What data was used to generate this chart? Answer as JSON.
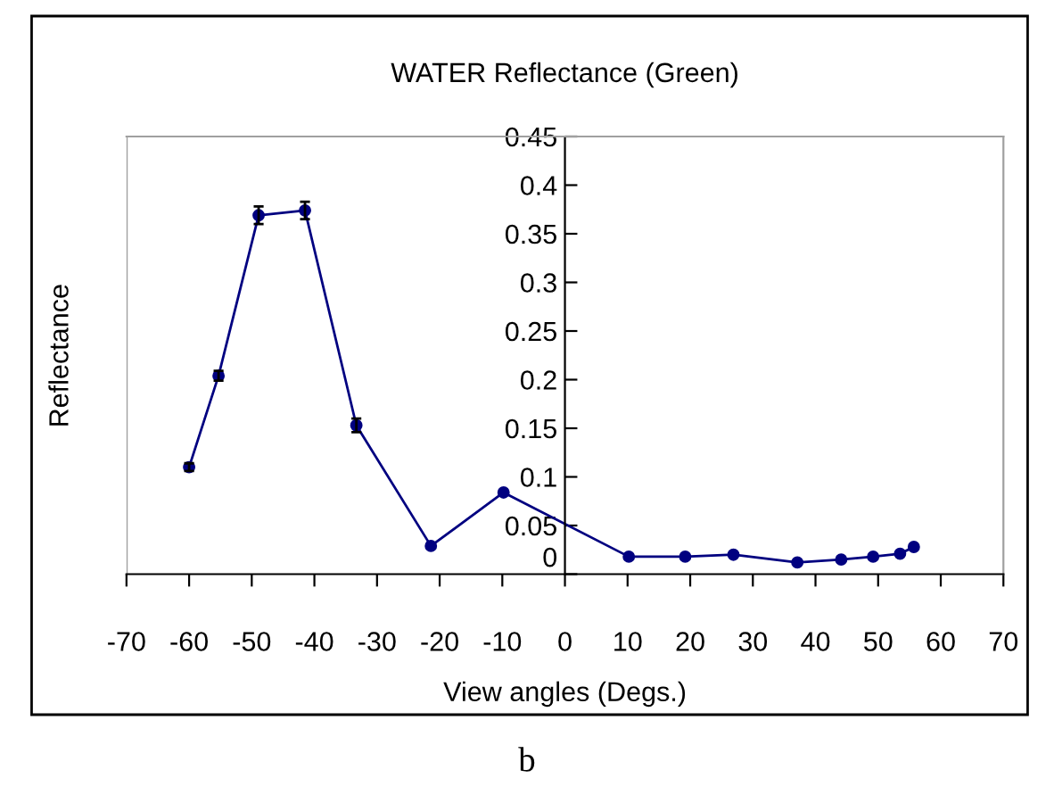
{
  "chart_data": {
    "type": "line",
    "title": "WATER Reflectance (Green)",
    "xlabel": "View angles (Degs.)",
    "ylabel": "Reflectance",
    "annotations": [
      "b"
    ],
    "x": [
      -60,
      -55.3,
      -48.9,
      -41.5,
      -33.3,
      -21.4,
      -9.8,
      10.2,
      19.2,
      26.9,
      37.1,
      44.1,
      49.2,
      53.5,
      55.7
    ],
    "series": [
      {
        "color": "#000080",
        "values": [
          0.11,
          0.204,
          0.369,
          0.374,
          0.153,
          0.029,
          0.084,
          0.018,
          0.018,
          0.02,
          0.012,
          0.015,
          0.018,
          0.021,
          0.028
        ],
        "errors": [
          0.004,
          0.005,
          0.009,
          0.009,
          0.007,
          null,
          null,
          null,
          null,
          null,
          null,
          null,
          null,
          null,
          null
        ]
      }
    ],
    "xlim": [
      -70,
      70
    ],
    "xticks": [
      -70,
      -60,
      -50,
      -40,
      -30,
      -20,
      -10,
      0,
      10,
      20,
      30,
      40,
      50,
      60,
      70
    ],
    "ylim": [
      0,
      0.45
    ],
    "yticks": [
      0,
      0.05,
      0.1,
      0.15,
      0.2,
      0.25,
      0.3,
      0.35,
      0.4,
      0.45
    ],
    "grid": false,
    "legend": false,
    "marker": "circle",
    "line_style": "solid"
  }
}
